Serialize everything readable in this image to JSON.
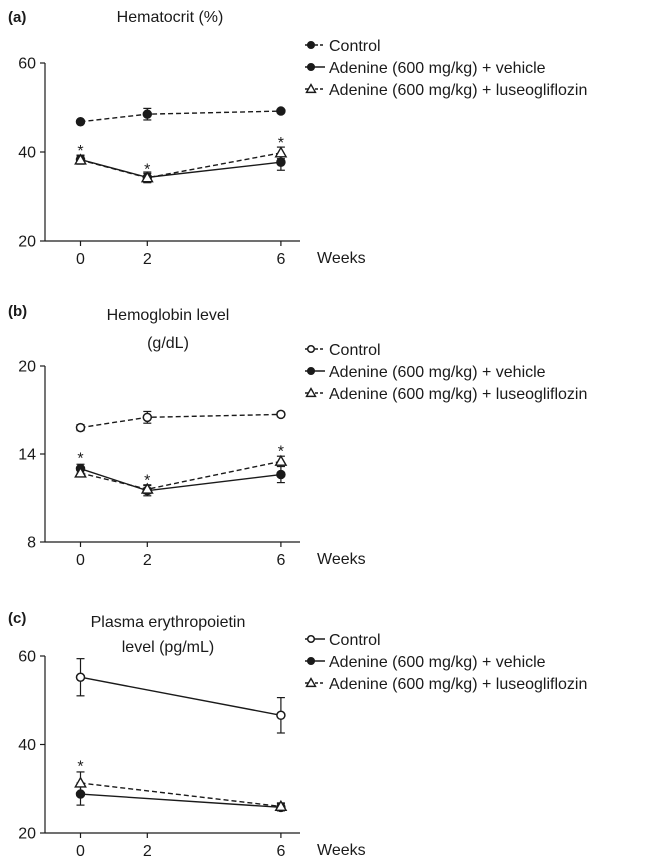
{
  "chart_data": [
    {
      "panel": "(a)",
      "type": "line",
      "title": "Hematocrit (%)",
      "xlabel": "Weeks",
      "ylabel": "",
      "ylim": [
        20,
        60
      ],
      "yticks": [
        20,
        40,
        60
      ],
      "xticks": [
        0,
        2,
        6
      ],
      "legend_position": "top-right",
      "series": [
        {
          "name": "Control",
          "marker": "filled-circle",
          "line": "dashed",
          "x": [
            0,
            2,
            6
          ],
          "y": [
            46.8,
            48.5,
            49.2
          ],
          "err": [
            0.4,
            1.3,
            0.4
          ]
        },
        {
          "name": "Adenine (600 mg/kg) + vehicle",
          "marker": "filled-circle",
          "line": "solid",
          "x": [
            0,
            2,
            6
          ],
          "y": [
            38.3,
            34.3,
            37.7
          ],
          "err": [
            1.0,
            1.2,
            1.8
          ]
        },
        {
          "name": "Adenine (600 mg/kg) + luseogliflozin",
          "marker": "triangle",
          "line": "dashed",
          "x": [
            0,
            2,
            6
          ],
          "y": [
            38.2,
            34.2,
            39.8
          ],
          "err": [
            0.9,
            1.0,
            1.3
          ]
        }
      ],
      "annotations": [
        {
          "text": "*",
          "x": 0,
          "y": 40.5
        },
        {
          "text": "*",
          "x": 2,
          "y": 36.3
        },
        {
          "text": "*",
          "x": 6,
          "y": 42.3
        }
      ]
    },
    {
      "panel": "(b)",
      "type": "line",
      "title": "Hemoglobin level (g/dL)",
      "title_lines": [
        "Hemoglobin level",
        "(g/dL)"
      ],
      "xlabel": "Weeks",
      "ylabel": "",
      "ylim": [
        8,
        20
      ],
      "yticks": [
        8,
        14,
        20
      ],
      "xticks": [
        0,
        2,
        6
      ],
      "legend_position": "top-right",
      "series": [
        {
          "name": "Control",
          "marker": "open-circle",
          "line": "dashed",
          "x": [
            0,
            2,
            6
          ],
          "y": [
            15.8,
            16.5,
            16.7
          ],
          "err": [
            0.2,
            0.4,
            0.15
          ]
        },
        {
          "name": "Adenine (600 mg/kg) + vehicle",
          "marker": "filled-circle",
          "line": "solid",
          "x": [
            0,
            2,
            6
          ],
          "y": [
            13.0,
            11.5,
            12.6
          ],
          "err": [
            0.3,
            0.35,
            0.55
          ]
        },
        {
          "name": "Adenine (600 mg/kg) + luseogliflozin",
          "marker": "triangle",
          "line": "dashed",
          "x": [
            0,
            2,
            6
          ],
          "y": [
            12.7,
            11.6,
            13.5
          ],
          "err": [
            0.2,
            0.3,
            0.35
          ]
        }
      ],
      "annotations": [
        {
          "text": "*",
          "x": 0,
          "y": 13.75
        },
        {
          "text": "*",
          "x": 2,
          "y": 12.25
        },
        {
          "text": "*",
          "x": 6,
          "y": 14.25
        }
      ]
    },
    {
      "panel": "(c)",
      "type": "line",
      "title": "Plasma erythropoietin level (pg/mL)",
      "title_lines": [
        "Plasma erythropoietin",
        "level (pg/mL)"
      ],
      "xlabel": "Weeks",
      "ylabel": "",
      "ylim": [
        20,
        60
      ],
      "yticks": [
        20,
        40,
        60
      ],
      "xticks": [
        0,
        2,
        6
      ],
      "legend_position": "top-right",
      "series": [
        {
          "name": "Control",
          "marker": "open-circle",
          "line": "solid",
          "x": [
            0,
            6
          ],
          "y": [
            55.2,
            46.6
          ],
          "err": [
            4.2,
            4.0
          ]
        },
        {
          "name": "Adenine (600 mg/kg) + vehicle",
          "marker": "filled-circle",
          "line": "solid",
          "x": [
            0,
            6
          ],
          "y": [
            28.8,
            25.8
          ],
          "err": [
            2.5,
            0.8
          ]
        },
        {
          "name": "Adenine (600 mg/kg) + luseogliflozin",
          "marker": "triangle",
          "line": "dashed",
          "x": [
            0,
            6
          ],
          "y": [
            31.3,
            26.0
          ],
          "err": [
            2.5,
            0.8
          ]
        }
      ],
      "annotations": [
        {
          "text": "*",
          "x": 0,
          "y": 35.3
        }
      ]
    }
  ]
}
